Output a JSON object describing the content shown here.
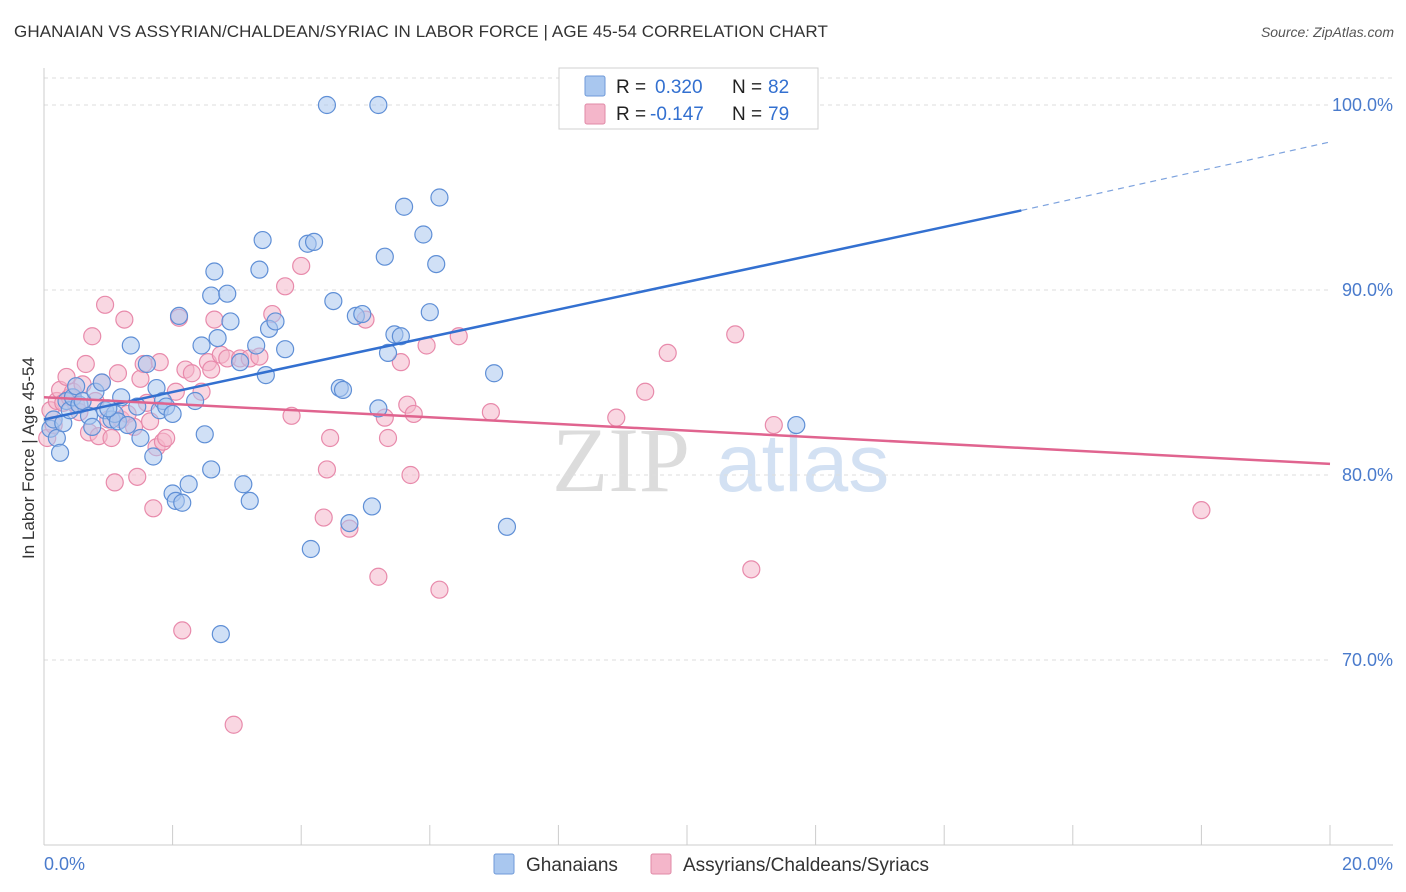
{
  "header": {
    "title": "GHANAIAN VS ASSYRIAN/CHALDEAN/SYRIAC IN LABOR FORCE | AGE 45-54 CORRELATION CHART",
    "source": "Source: ZipAtlas.com"
  },
  "watermark": {
    "part1": "ZIP",
    "part2": "atlas"
  },
  "colors": {
    "blue": "#3370d0",
    "blue_fill": "#a9c7ef",
    "pink": "#e0648f",
    "pink_fill": "#f4b6ca",
    "axis_label": "#4a7bcc"
  },
  "legend_top": {
    "rows": [
      {
        "r_label": "R = ",
        "r_value": "0.320",
        "n_label": "N = ",
        "n_value": "82"
      },
      {
        "r_label": "R = ",
        "r_value": "-0.147",
        "n_label": "N = ",
        "n_value": "79"
      }
    ]
  },
  "legend_bottom": {
    "items": [
      {
        "label": "Ghanaians"
      },
      {
        "label": "Assyrians/Chaldeans/Syriacs"
      }
    ]
  },
  "chart_data": {
    "type": "scatter",
    "title": "GHANAIAN VS ASSYRIAN/CHALDEAN/SYRIAC IN LABOR FORCE | AGE 45-54 CORRELATION CHART",
    "xlabel": "",
    "ylabel": "In Labor Force | Age 45-54",
    "xlim": [
      0,
      20
    ],
    "ylim": [
      60,
      102
    ],
    "x_tick_labels": [
      "0.0%",
      "20.0%"
    ],
    "y_ticks": [
      70,
      80,
      90,
      100
    ],
    "y_tick_labels": [
      "70.0%",
      "80.0%",
      "90.0%",
      "100.0%"
    ],
    "grid": true,
    "series": [
      {
        "name": "Ghanaians",
        "color": "#3370d0",
        "r": 0.32,
        "n": 82,
        "trend": {
          "x0": 0.0,
          "y0": 83.0,
          "x1": 15.2,
          "y1": 94.3,
          "dash_to_x": 20.0,
          "dash_to_y": 98.0
        },
        "points": [
          [
            0.1,
            82.5
          ],
          [
            0.15,
            83.0
          ],
          [
            0.2,
            82.0
          ],
          [
            0.25,
            81.2
          ],
          [
            0.3,
            82.8
          ],
          [
            0.35,
            84.0
          ],
          [
            0.4,
            83.5
          ],
          [
            0.45,
            84.2
          ],
          [
            0.5,
            84.8
          ],
          [
            0.55,
            83.8
          ],
          [
            0.6,
            84.0
          ],
          [
            0.7,
            83.2
          ],
          [
            0.75,
            82.6
          ],
          [
            0.8,
            84.5
          ],
          [
            0.9,
            85.0
          ],
          [
            0.95,
            83.5
          ],
          [
            1.05,
            83.0
          ],
          [
            1.1,
            83.3
          ],
          [
            1.15,
            82.9
          ],
          [
            1.2,
            84.2
          ],
          [
            1.3,
            82.7
          ],
          [
            1.35,
            87.0
          ],
          [
            1.45,
            83.7
          ],
          [
            1.5,
            82.0
          ],
          [
            1.6,
            86.0
          ],
          [
            1.7,
            81.0
          ],
          [
            1.75,
            84.7
          ],
          [
            1.8,
            83.5
          ],
          [
            1.85,
            84.0
          ],
          [
            1.9,
            83.7
          ],
          [
            2.0,
            79.0
          ],
          [
            2.05,
            78.6
          ],
          [
            2.1,
            88.6
          ],
          [
            2.15,
            78.5
          ],
          [
            2.25,
            79.5
          ],
          [
            2.35,
            84.0
          ],
          [
            2.45,
            87.0
          ],
          [
            2.5,
            82.2
          ],
          [
            2.6,
            80.3
          ],
          [
            2.6,
            89.7
          ],
          [
            2.65,
            91.0
          ],
          [
            2.7,
            87.4
          ],
          [
            2.75,
            71.4
          ],
          [
            2.85,
            89.8
          ],
          [
            2.9,
            88.3
          ],
          [
            3.05,
            86.1
          ],
          [
            3.1,
            79.5
          ],
          [
            3.2,
            78.6
          ],
          [
            3.3,
            87.0
          ],
          [
            3.35,
            91.1
          ],
          [
            3.4,
            92.7
          ],
          [
            3.45,
            85.4
          ],
          [
            3.5,
            87.9
          ],
          [
            3.6,
            88.3
          ],
          [
            3.75,
            86.8
          ],
          [
            4.1,
            92.5
          ],
          [
            4.15,
            76.0
          ],
          [
            4.4,
            100.0
          ],
          [
            4.5,
            89.4
          ],
          [
            4.6,
            84.7
          ],
          [
            4.65,
            84.6
          ],
          [
            4.75,
            77.4
          ],
          [
            4.85,
            88.6
          ],
          [
            4.95,
            88.7
          ],
          [
            5.1,
            78.3
          ],
          [
            5.2,
            83.6
          ],
          [
            5.3,
            91.8
          ],
          [
            5.35,
            86.6
          ],
          [
            5.45,
            87.6
          ],
          [
            5.55,
            87.5
          ],
          [
            5.6,
            94.5
          ],
          [
            5.9,
            93.0
          ],
          [
            6.1,
            91.4
          ],
          [
            6.15,
            95.0
          ],
          [
            6.0,
            88.8
          ],
          [
            7.0,
            85.5
          ],
          [
            7.2,
            77.2
          ],
          [
            11.7,
            82.7
          ],
          [
            4.2,
            92.6
          ],
          [
            5.2,
            100.0
          ],
          [
            1.0,
            83.6
          ],
          [
            2.0,
            83.3
          ]
        ]
      },
      {
        "name": "Assyrians/Chaldeans/Syriacs",
        "color": "#e0648f",
        "r": -0.147,
        "n": 79,
        "trend": {
          "x0": 0.0,
          "y0": 84.2,
          "x1": 20.0,
          "y1": 80.6
        },
        "points": [
          [
            0.05,
            82.0
          ],
          [
            0.1,
            83.5
          ],
          [
            0.15,
            82.7
          ],
          [
            0.2,
            84.0
          ],
          [
            0.25,
            84.6
          ],
          [
            0.3,
            83.9
          ],
          [
            0.35,
            85.3
          ],
          [
            0.4,
            84.2
          ],
          [
            0.45,
            84.5
          ],
          [
            0.5,
            83.8
          ],
          [
            0.55,
            83.4
          ],
          [
            0.6,
            84.9
          ],
          [
            0.65,
            86.0
          ],
          [
            0.7,
            82.3
          ],
          [
            0.75,
            87.5
          ],
          [
            0.8,
            84.0
          ],
          [
            0.85,
            82.1
          ],
          [
            0.9,
            85.0
          ],
          [
            0.95,
            89.2
          ],
          [
            1.0,
            83.0
          ],
          [
            1.05,
            82.0
          ],
          [
            1.1,
            79.6
          ],
          [
            1.15,
            85.5
          ],
          [
            1.2,
            83.0
          ],
          [
            1.25,
            88.4
          ],
          [
            1.3,
            83.3
          ],
          [
            1.4,
            82.6
          ],
          [
            1.45,
            79.9
          ],
          [
            1.5,
            85.2
          ],
          [
            1.55,
            86.0
          ],
          [
            1.6,
            83.9
          ],
          [
            1.65,
            82.9
          ],
          [
            1.7,
            78.2
          ],
          [
            1.75,
            81.5
          ],
          [
            1.8,
            86.1
          ],
          [
            1.85,
            81.8
          ],
          [
            1.9,
            82.0
          ],
          [
            2.05,
            84.5
          ],
          [
            2.1,
            88.5
          ],
          [
            2.15,
            71.6
          ],
          [
            2.2,
            85.7
          ],
          [
            2.3,
            85.5
          ],
          [
            2.45,
            84.5
          ],
          [
            2.55,
            86.1
          ],
          [
            2.6,
            85.7
          ],
          [
            2.65,
            88.4
          ],
          [
            2.75,
            86.5
          ],
          [
            2.85,
            86.3
          ],
          [
            2.95,
            66.5
          ],
          [
            3.05,
            86.3
          ],
          [
            3.2,
            86.3
          ],
          [
            3.35,
            86.4
          ],
          [
            3.55,
            88.7
          ],
          [
            3.75,
            90.2
          ],
          [
            3.85,
            83.2
          ],
          [
            4.0,
            91.3
          ],
          [
            4.35,
            77.7
          ],
          [
            4.4,
            80.3
          ],
          [
            4.45,
            82.0
          ],
          [
            4.75,
            77.1
          ],
          [
            5.0,
            88.4
          ],
          [
            5.2,
            74.5
          ],
          [
            5.3,
            83.1
          ],
          [
            5.35,
            82.0
          ],
          [
            5.55,
            86.1
          ],
          [
            5.65,
            83.8
          ],
          [
            5.7,
            80.0
          ],
          [
            5.75,
            83.3
          ],
          [
            5.95,
            87.0
          ],
          [
            6.15,
            73.8
          ],
          [
            6.45,
            87.5
          ],
          [
            6.95,
            83.4
          ],
          [
            8.9,
            83.1
          ],
          [
            9.35,
            84.5
          ],
          [
            9.7,
            86.6
          ],
          [
            10.75,
            87.6
          ],
          [
            11.0,
            74.9
          ],
          [
            11.35,
            82.7
          ],
          [
            18.0,
            78.1
          ]
        ]
      }
    ]
  }
}
